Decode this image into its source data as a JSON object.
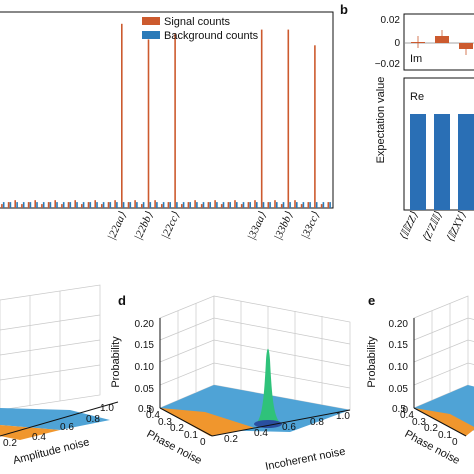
{
  "colors": {
    "signal": "#cc5a2e",
    "background": "#2a7ab8",
    "re_bar": "#2a6fb5",
    "surface_base": "#4fa3d6",
    "surface_orange": "#f0962d",
    "peak": "#2fc27a"
  },
  "chart_data": [
    {
      "type": "bar",
      "panel": "a",
      "legend": [
        "Signal counts",
        "Background counts"
      ],
      "categories_labeled": [
        "|22aa⟩",
        "|22bb⟩",
        "|22cc⟩",
        "|33aa⟩",
        "|33bb⟩",
        "|33cc⟩"
      ],
      "signal_peaks_relative": [
        0.94,
        0.86,
        0.89,
        0.91,
        0.91,
        0.83
      ],
      "background_level_relative": 0.03,
      "n_categories": 50
    },
    {
      "type": "bar",
      "panel": "b",
      "ylabel": "Expectation value",
      "subpanels": [
        {
          "label": "Im",
          "yticks": [
            "0.02",
            "0",
            "−0.02"
          ],
          "ylim": [
            -0.025,
            0.025
          ],
          "values": [
            0.001,
            0.007,
            -0.006
          ]
        },
        {
          "label": "Re",
          "values": [
            0.74,
            0.74,
            0.74
          ]
        }
      ],
      "xticklabels": [
        "⟨𝕀𝕀ZZ⟩",
        "⟨Z′Z𝕀𝕀⟩",
        "⟨𝕀ZXY⟩"
      ]
    },
    {
      "type": "surface3d",
      "panel": "c",
      "xlabel": "Amplitude noise",
      "xticks": [
        "0.2",
        "0.4",
        "0.6",
        "0.8",
        "1.0"
      ]
    },
    {
      "type": "surface3d",
      "panel": "d",
      "zlabel": "Probability",
      "zticks": [
        "0.20",
        "0.15",
        "0.10",
        "0.05",
        "0"
      ],
      "ylabel": "Phase noise",
      "yticks": [
        "0.5",
        "0.4",
        "0.3",
        "0.2",
        "0.1",
        "0"
      ],
      "xlabel": "Incoherent noise",
      "xticks": [
        "0.2",
        "0.4",
        "0.6",
        "0.8",
        "1.0"
      ],
      "peak_probability": 0.19
    },
    {
      "type": "surface3d",
      "panel": "e",
      "zlabel": "Probability",
      "zticks": [
        "0.20",
        "0.15",
        "0.10",
        "0.05",
        "0"
      ],
      "ylabel": "Phase noise",
      "yticks": [
        "0.5",
        "0.4",
        "0.3",
        "0.2",
        "0.1",
        "0"
      ]
    }
  ]
}
